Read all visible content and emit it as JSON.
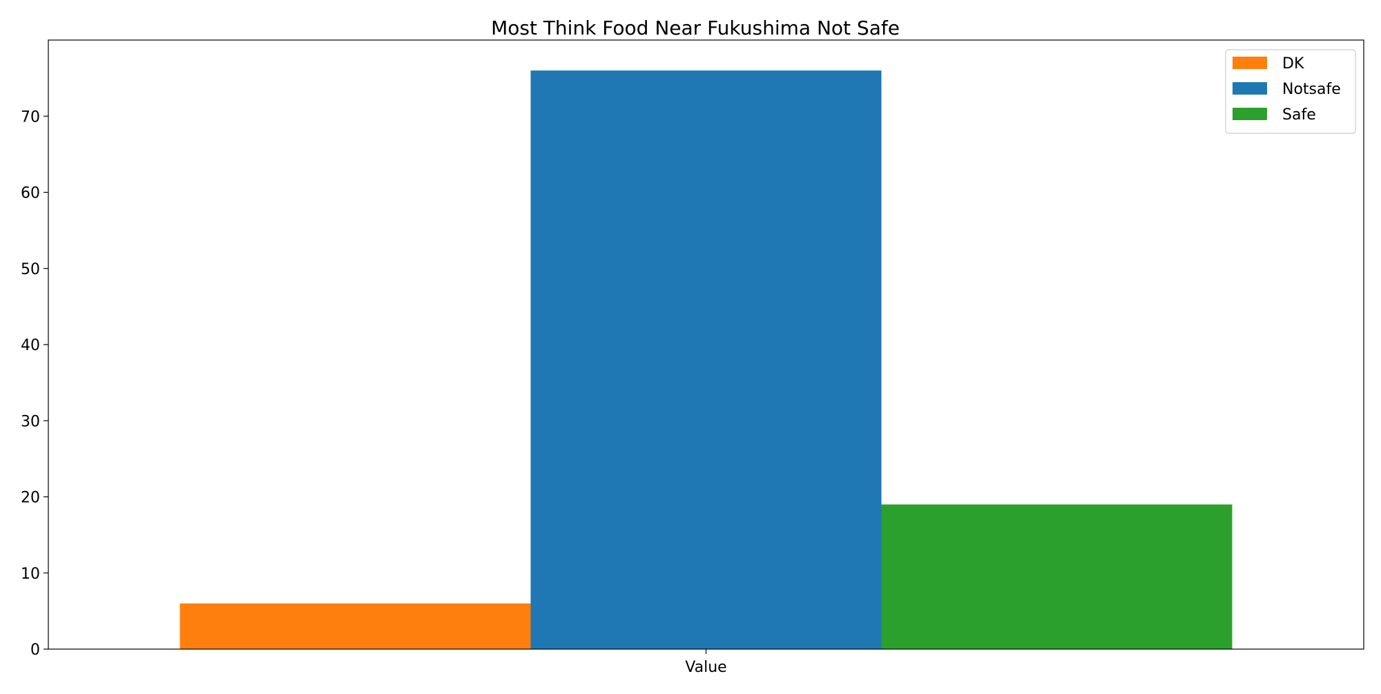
{
  "chart_data": {
    "type": "bar",
    "title": "Most Think Food Near Fukushima Not Safe",
    "xlabel": "",
    "ylabel": "",
    "categories": [
      "Value"
    ],
    "series": [
      {
        "name": "DK",
        "values": [
          6
        ],
        "color": "#ff7f0e"
      },
      {
        "name": "Notsafe",
        "values": [
          76
        ],
        "color": "#1f77b4"
      },
      {
        "name": "Safe",
        "values": [
          19
        ],
        "color": "#2ca02c"
      }
    ],
    "ylim": [
      0,
      80
    ],
    "yticks": [
      0,
      10,
      20,
      30,
      40,
      50,
      60,
      70
    ],
    "grid": false,
    "legend_position": "top-right"
  }
}
